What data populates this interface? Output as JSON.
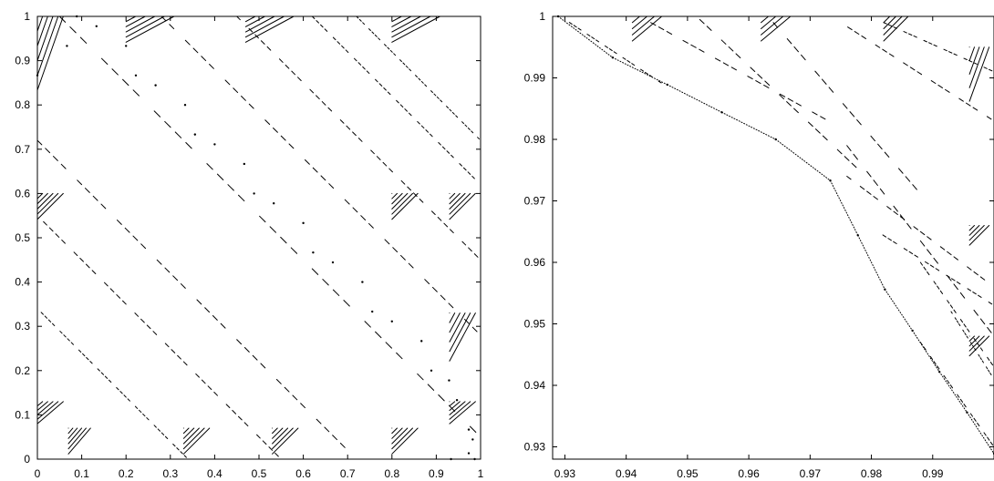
{
  "chart_data": [
    {
      "type": "scatter",
      "title": "",
      "xlabel": "",
      "ylabel": "",
      "xlim": [
        0,
        1
      ],
      "ylim": [
        0,
        1
      ],
      "xticks": [
        0,
        0.1,
        0.2,
        0.3,
        0.4,
        0.5,
        0.6,
        0.7,
        0.8,
        0.9,
        1
      ],
      "xtick_labels": [
        "0",
        "0.1",
        "0.2",
        "0.3",
        "0.4",
        "0.5",
        "0.6",
        "0.7",
        "0.8",
        "0.9",
        "1"
      ],
      "yticks": [
        0,
        0.1,
        0.2,
        0.3,
        0.4,
        0.5,
        0.6,
        0.7,
        0.8,
        0.9,
        1
      ],
      "ytick_labels": [
        "0",
        "0.1",
        "0.2",
        "0.3",
        "0.4",
        "0.5",
        "0.6",
        "0.7",
        "0.8",
        "0.9",
        "1"
      ],
      "grid": false,
      "point_color": "#000000",
      "series": [
        {
          "values_described": "fractal point set",
          "x": [
            0.9333,
            0.9733,
            0.9867,
            0.9822,
            0.9733,
            0.9467,
            0.9289,
            0.8889,
            0.8667,
            0.8,
            0.7556,
            0.7333,
            0.6667,
            0.6222,
            0.6,
            0.5333,
            0.4889,
            0.4667,
            0.4,
            0.3556,
            0.3333,
            0.2667,
            0.2222,
            0.2,
            0.1333,
            0.0889,
            0.0667,
            0.0
          ],
          "y": [
            0.0,
            0.0133,
            0.0,
            0.0444,
            0.0667,
            0.1333,
            0.1778,
            0.2,
            0.2667,
            0.3111,
            0.3333,
            0.4,
            0.4444,
            0.4667,
            0.5333,
            0.5778,
            0.6,
            0.6667,
            0.7111,
            0.7333,
            0.8,
            0.8444,
            0.8667,
            0.9333,
            0.9778,
            1.0,
            0.9333,
            0.8667
          ]
        }
      ]
    },
    {
      "type": "scatter",
      "title": "",
      "xlabel": "",
      "ylabel": "",
      "xlim": [
        0.928,
        1.0
      ],
      "ylim": [
        0.928,
        1.0
      ],
      "xticks": [
        0.93,
        0.94,
        0.95,
        0.96,
        0.97,
        0.98,
        0.99
      ],
      "xtick_labels": [
        "0.93",
        "0.94",
        "0.95",
        "0.96",
        "0.97",
        "0.98",
        "0.99"
      ],
      "yticks": [
        0.93,
        0.94,
        0.95,
        0.96,
        0.97,
        0.98,
        0.99,
        1.0
      ],
      "ytick_labels": [
        "0.93",
        "0.94",
        "0.95",
        "0.96",
        "0.97",
        "0.98",
        "0.99",
        "1"
      ],
      "grid": false,
      "point_color": "#000000",
      "series": [
        {
          "x": [
            0.9289,
            0.9378,
            0.9467,
            0.9556,
            0.9644,
            0.9733,
            0.9778,
            0.9822,
            0.9867,
            0.9911,
            0.9956,
            1.0
          ],
          "y": [
            1.0,
            0.9933,
            0.9889,
            0.9844,
            0.98,
            0.9733,
            0.9644,
            0.9556,
            0.9489,
            0.9422,
            0.9356,
            0.9289
          ]
        }
      ]
    }
  ]
}
